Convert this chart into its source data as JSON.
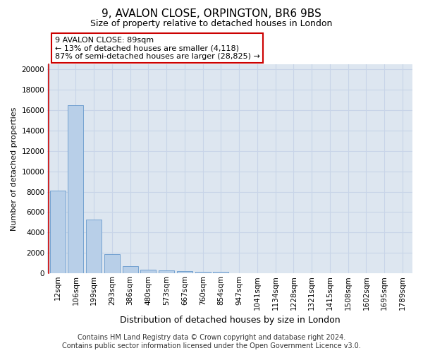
{
  "title": "9, AVALON CLOSE, ORPINGTON, BR6 9BS",
  "subtitle": "Size of property relative to detached houses in London",
  "xlabel": "Distribution of detached houses by size in London",
  "ylabel": "Number of detached properties",
  "bar_values": [
    8100,
    16500,
    5300,
    1850,
    700,
    370,
    280,
    220,
    170,
    120,
    0,
    0,
    0,
    0,
    0,
    0,
    0,
    0,
    0,
    0
  ],
  "bar_labels": [
    "12sqm",
    "106sqm",
    "199sqm",
    "293sqm",
    "386sqm",
    "480sqm",
    "573sqm",
    "667sqm",
    "760sqm",
    "854sqm",
    "947sqm",
    "1041sqm",
    "1134sqm",
    "1228sqm",
    "1321sqm",
    "1415sqm",
    "1508sqm",
    "1602sqm",
    "1695sqm",
    "1789sqm"
  ],
  "bar_color": "#b8cfe8",
  "bar_edge_color": "#6699cc",
  "annotation_text": "9 AVALON CLOSE: 89sqm\n← 13% of detached houses are smaller (4,118)\n87% of semi-detached houses are larger (28,825) →",
  "red_line_x": 0.5,
  "ylim": [
    0,
    20500
  ],
  "yticks": [
    0,
    2000,
    4000,
    6000,
    8000,
    10000,
    12000,
    14000,
    16000,
    18000,
    20000
  ],
  "grid_color": "#c8d4e8",
  "bg_color": "#dde6f0",
  "footer": "Contains HM Land Registry data © Crown copyright and database right 2024.\nContains public sector information licensed under the Open Government Licence v3.0.",
  "title_fontsize": 11,
  "subtitle_fontsize": 9,
  "xlabel_fontsize": 9,
  "ylabel_fontsize": 8,
  "tick_fontsize": 7.5,
  "annotation_fontsize": 8,
  "footer_fontsize": 7
}
